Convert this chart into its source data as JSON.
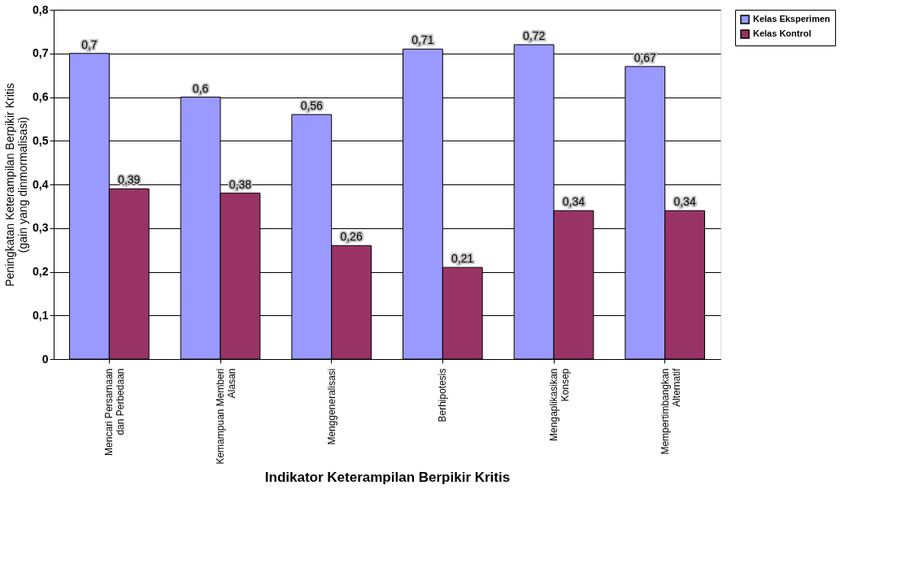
{
  "chart_data": {
    "type": "bar",
    "xlabel": "Indikator Keterampilan Berpikir Kritis",
    "ylabel": "Peningkatan Keterampilan Berpikir Kritis\n(gain yang dinmormalisasi)",
    "categories": [
      "Mencari Persamaan dan Perbedaan",
      "Kemampuan Memberi Alasan",
      "Menggeneralisasi",
      "Berhipotesis",
      "Mengaplikasikan Konsep",
      "Mempertimbangkan Alternatif"
    ],
    "series": [
      {
        "name": "Kelas Eksperimen",
        "color": "#9999ff",
        "values": [
          0.7,
          0.6,
          0.56,
          0.71,
          0.72,
          0.67
        ],
        "value_labels": [
          "0,7",
          "0,6",
          "0,56",
          "0,71",
          "0,72",
          "0,67"
        ]
      },
      {
        "name": "Kelas Kontrol",
        "color": "#993366",
        "values": [
          0.39,
          0.38,
          0.26,
          0.21,
          0.34,
          0.34
        ],
        "value_labels": [
          "0,39",
          "0,38",
          "0,26",
          "0,21",
          "0,34",
          "0,34"
        ]
      }
    ],
    "ylim": [
      0,
      0.8
    ],
    "yticks": [
      {
        "value": 0,
        "label": "0"
      },
      {
        "value": 0.1,
        "label": "0,1"
      },
      {
        "value": 0.2,
        "label": "0,2"
      },
      {
        "value": 0.3,
        "label": "0,3"
      },
      {
        "value": 0.4,
        "label": "0,4"
      },
      {
        "value": 0.5,
        "label": "0,5"
      },
      {
        "value": 0.6,
        "label": "0,6"
      },
      {
        "value": 0.7,
        "label": "0,7"
      },
      {
        "value": 0.8,
        "label": "0,8"
      }
    ],
    "grid": "y",
    "legend": "right"
  }
}
